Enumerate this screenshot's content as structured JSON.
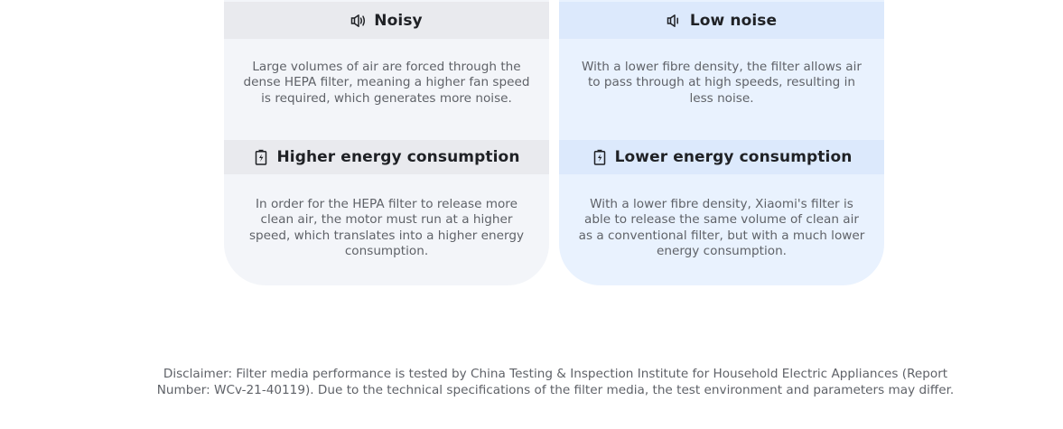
{
  "cards": [
    {
      "id": "conventional",
      "sections": [
        {
          "icon": "speaker-icon",
          "title": "Noisy",
          "text": "Large volumes of air are forced through the dense HEPA filter, meaning a higher fan speed is required, which generates more noise."
        },
        {
          "icon": "battery-icon",
          "title": "Higher energy consumption",
          "text": "In order for the HEPA filter to release more clean air, the motor must run at a higher speed, which translates into a higher energy consumption."
        }
      ]
    },
    {
      "id": "xiaomi",
      "sections": [
        {
          "icon": "speaker-icon",
          "title": "Low noise",
          "text": "With a lower fibre density, the filter allows air to pass through at high speeds, resulting in less noise."
        },
        {
          "icon": "battery-icon",
          "title": "Lower energy consumption",
          "text": "With a lower fibre density, Xiaomi's filter is able to release the same volume of clean air as a conventional filter, but with a much lower energy consumption."
        }
      ]
    }
  ],
  "disclaimer": "Disclaimer: Filter media performance is tested by China Testing & Inspection Institute for Household Electric Appliances (Report Number: WCv-21-40119). Due to the technical specifications of the filter media, the test environment and parameters may differ.",
  "colors": {
    "left_card_bg": "#f3f5f9",
    "left_header_bg": "#e9eaee",
    "right_card_bg": "#e9f2fe",
    "right_header_bg": "#dce9fc",
    "title_text": "#1f2125",
    "body_text": "#5f6268"
  }
}
